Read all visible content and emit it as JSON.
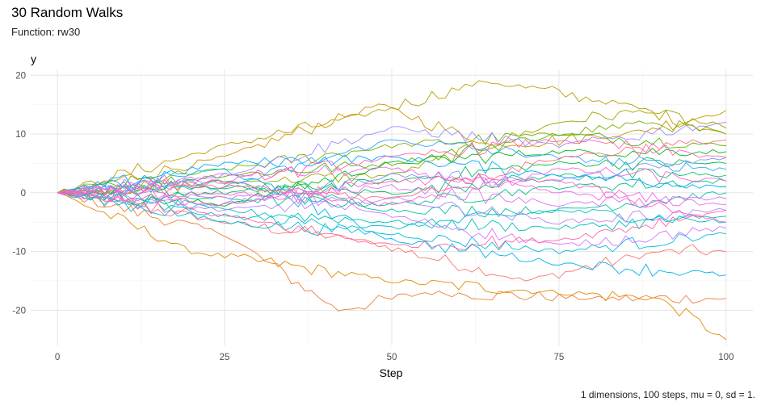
{
  "chart_data": {
    "type": "line",
    "title": "30 Random Walks",
    "subtitle": "Function: rw30",
    "caption": "1 dimensions, 100 steps, mu = 0, sd = 1.",
    "xlabel": "Step",
    "ylabel": "y",
    "xlim": [
      -4,
      104
    ],
    "ylim": [
      -26,
      21
    ],
    "x_ticks": [
      0,
      25,
      50,
      75,
      100
    ],
    "y_ticks": [
      -20,
      -10,
      0,
      10,
      20
    ],
    "grid": true,
    "legend": "none",
    "series_count": 30,
    "steps": 100,
    "mu": 0,
    "sd": 1,
    "anchors": [
      [
        [
          0,
          0
        ],
        [
          25,
          -5
        ],
        [
          45,
          -8
        ],
        [
          70,
          -15
        ],
        [
          90,
          -10
        ],
        [
          100,
          -10
        ]
      ],
      [
        [
          0,
          0
        ],
        [
          25,
          -7
        ],
        [
          42,
          -20
        ],
        [
          55,
          -17
        ],
        [
          80,
          -18
        ],
        [
          100,
          -18
        ]
      ],
      [
        [
          0,
          0
        ],
        [
          20,
          -10
        ],
        [
          50,
          -15
        ],
        [
          75,
          -17
        ],
        [
          90,
          -18
        ],
        [
          100,
          -25
        ]
      ],
      [
        [
          0,
          0
        ],
        [
          25,
          6
        ],
        [
          48,
          15
        ],
        [
          65,
          8
        ],
        [
          85,
          10
        ],
        [
          100,
          14
        ]
      ],
      [
        [
          0,
          0
        ],
        [
          25,
          8
        ],
        [
          45,
          13
        ],
        [
          64,
          19
        ],
        [
          85,
          15
        ],
        [
          100,
          10
        ]
      ],
      [
        [
          0,
          0
        ],
        [
          30,
          2
        ],
        [
          50,
          3
        ],
        [
          75,
          12
        ],
        [
          88,
          14
        ],
        [
          100,
          11
        ]
      ],
      [
        [
          0,
          0
        ],
        [
          25,
          4
        ],
        [
          50,
          8
        ],
        [
          75,
          10
        ],
        [
          88,
          12
        ],
        [
          100,
          10
        ]
      ],
      [
        [
          0,
          0
        ],
        [
          25,
          3
        ],
        [
          50,
          5
        ],
        [
          75,
          10
        ],
        [
          100,
          8
        ]
      ],
      [
        [
          0,
          0
        ],
        [
          25,
          -2
        ],
        [
          50,
          5
        ],
        [
          75,
          7
        ],
        [
          100,
          7
        ]
      ],
      [
        [
          0,
          0
        ],
        [
          25,
          0
        ],
        [
          50,
          2
        ],
        [
          75,
          5
        ],
        [
          100,
          5
        ]
      ],
      [
        [
          0,
          0
        ],
        [
          25,
          1
        ],
        [
          50,
          0
        ],
        [
          75,
          3
        ],
        [
          100,
          3
        ]
      ],
      [
        [
          0,
          0
        ],
        [
          25,
          -1
        ],
        [
          50,
          -2
        ],
        [
          75,
          1
        ],
        [
          100,
          2
        ]
      ],
      [
        [
          0,
          0
        ],
        [
          25,
          2
        ],
        [
          50,
          -3
        ],
        [
          75,
          -3
        ],
        [
          100,
          0
        ]
      ],
      [
        [
          0,
          0
        ],
        [
          25,
          -3
        ],
        [
          50,
          -5
        ],
        [
          75,
          -6
        ],
        [
          100,
          -4
        ]
      ],
      [
        [
          0,
          0
        ],
        [
          25,
          -4
        ],
        [
          50,
          -6
        ],
        [
          75,
          -3
        ],
        [
          100,
          -5
        ]
      ],
      [
        [
          0,
          0
        ],
        [
          25,
          -5
        ],
        [
          50,
          -7
        ],
        [
          75,
          -10
        ],
        [
          100,
          -7
        ]
      ],
      [
        [
          0,
          0
        ],
        [
          25,
          4
        ],
        [
          50,
          -8
        ],
        [
          75,
          -12
        ],
        [
          100,
          -14
        ]
      ],
      [
        [
          0,
          0
        ],
        [
          25,
          5
        ],
        [
          50,
          6
        ],
        [
          75,
          3
        ],
        [
          100,
          1
        ]
      ],
      [
        [
          0,
          0
        ],
        [
          25,
          1
        ],
        [
          50,
          9
        ],
        [
          75,
          6
        ],
        [
          100,
          4
        ]
      ],
      [
        [
          0,
          0
        ],
        [
          25,
          -2
        ],
        [
          50,
          3
        ],
        [
          75,
          2
        ],
        [
          100,
          6
        ]
      ],
      [
        [
          0,
          0
        ],
        [
          25,
          3
        ],
        [
          50,
          11
        ],
        [
          75,
          8
        ],
        [
          100,
          12
        ]
      ],
      [
        [
          0,
          0
        ],
        [
          25,
          -3
        ],
        [
          50,
          -1
        ],
        [
          75,
          -5
        ],
        [
          100,
          -3
        ]
      ],
      [
        [
          0,
          0
        ],
        [
          25,
          2
        ],
        [
          50,
          -4
        ],
        [
          75,
          -9
        ],
        [
          100,
          -6
        ]
      ],
      [
        [
          0,
          0
        ],
        [
          25,
          -1
        ],
        [
          50,
          1
        ],
        [
          75,
          -2
        ],
        [
          100,
          -1
        ]
      ],
      [
        [
          0,
          0
        ],
        [
          25,
          3
        ],
        [
          50,
          4
        ],
        [
          75,
          0
        ],
        [
          100,
          -2
        ]
      ],
      [
        [
          0,
          0
        ],
        [
          25,
          0
        ],
        [
          50,
          -2
        ],
        [
          75,
          4
        ],
        [
          100,
          2
        ]
      ],
      [
        [
          0,
          0
        ],
        [
          25,
          -2
        ],
        [
          50,
          2
        ],
        [
          75,
          2
        ],
        [
          100,
          -5
        ]
      ],
      [
        [
          0,
          0
        ],
        [
          25,
          2
        ],
        [
          50,
          6
        ],
        [
          75,
          9
        ],
        [
          100,
          6
        ]
      ],
      [
        [
          0,
          0
        ],
        [
          25,
          -4
        ],
        [
          50,
          -9
        ],
        [
          75,
          -8
        ],
        [
          100,
          -3
        ]
      ],
      [
        [
          0,
          0
        ],
        [
          25,
          1
        ],
        [
          50,
          -1
        ],
        [
          75,
          6
        ],
        [
          100,
          9
        ]
      ]
    ],
    "colors": [
      "#F8766D",
      "#EE7F38",
      "#E18A00",
      "#CF9400",
      "#B89D00",
      "#9DA700",
      "#7CAE00",
      "#4EB400",
      "#00B81F",
      "#00BB4E",
      "#00BE6C",
      "#00C088",
      "#00C1A1",
      "#00C0B8",
      "#00BECC",
      "#00BADE",
      "#00B3EE",
      "#00ABFB",
      "#35A2FF",
      "#7997FF",
      "#9F8CFF",
      "#BB81FF",
      "#D176FF",
      "#E16EF5",
      "#ED68E9",
      "#F763D9",
      "#FD61C8",
      "#FF61B5",
      "#FF659F",
      "#FD6D88"
    ]
  }
}
